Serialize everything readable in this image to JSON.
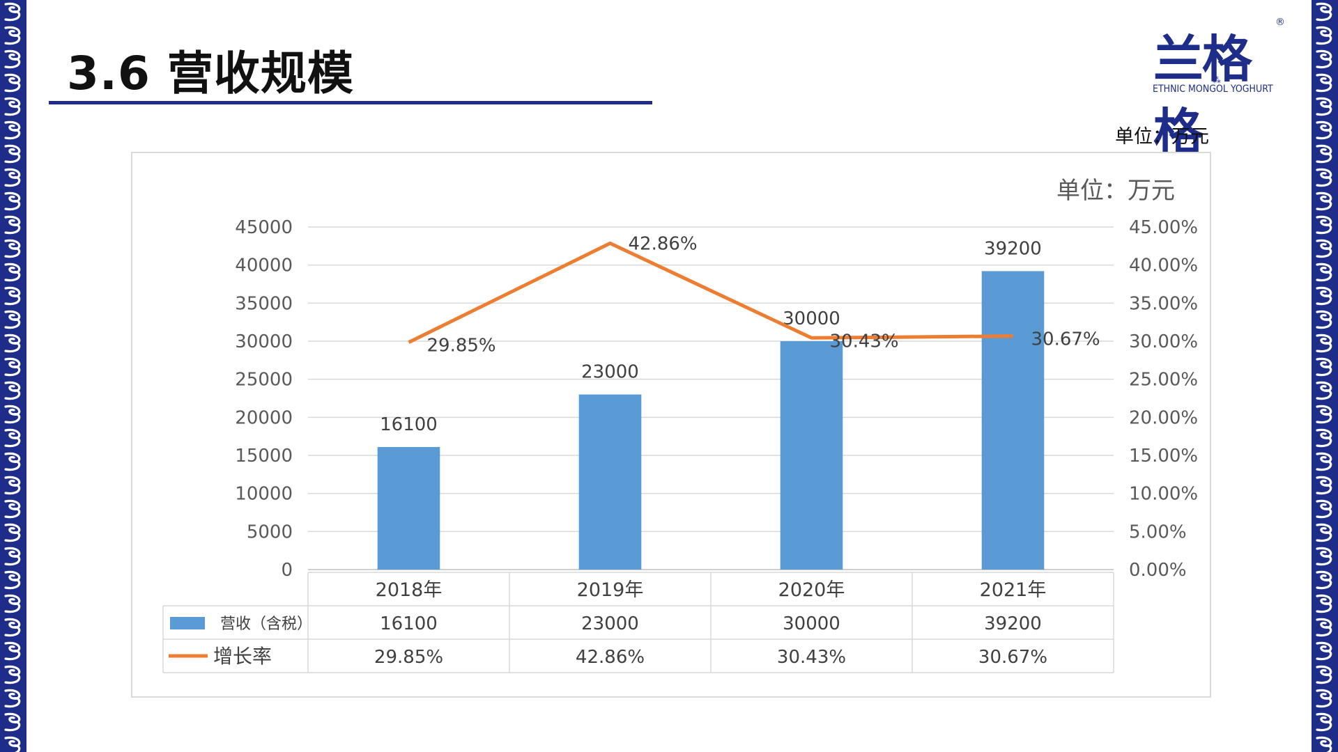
{
  "slide": {
    "title": "3.6 营收规模",
    "unit_label": "单位：万元",
    "logo": {
      "mark": "兰格格",
      "registered": "®",
      "ornament": "⁂",
      "subtitle": "ETHNIC MONGOL YOGHURT"
    }
  },
  "colors": {
    "accent": "#1f2d8a",
    "bar": "#5b9bd5",
    "line": "#ed7d31",
    "border_bg": "#1f2d8a",
    "border_motif": "#ffffff"
  },
  "chart_data": {
    "type": "bar",
    "unit_note": "单位：万元",
    "categories": [
      "2018年",
      "2019年",
      "2020年",
      "2021年"
    ],
    "series": [
      {
        "name": "营收（含税）",
        "type": "bar",
        "axis": "left",
        "values": [
          16100,
          23000,
          30000,
          39200
        ],
        "labels": [
          "16100",
          "23000",
          "30000",
          "39200"
        ]
      },
      {
        "name": "增长率",
        "type": "line",
        "axis": "right",
        "values": [
          29.85,
          42.86,
          30.43,
          30.67
        ],
        "labels": [
          "29.85%",
          "42.86%",
          "30.43%",
          "30.67%"
        ]
      }
    ],
    "left_axis": {
      "ylim": [
        0,
        45000
      ],
      "ticks": [
        "0",
        "5000",
        "10000",
        "15000",
        "20000",
        "25000",
        "30000",
        "35000",
        "40000",
        "45000"
      ]
    },
    "right_axis": {
      "ylim": [
        0,
        45
      ],
      "ticks": [
        "0.00%",
        "5.00%",
        "10.00%",
        "15.00%",
        "20.00%",
        "25.00%",
        "30.00%",
        "35.00%",
        "40.00%",
        "45.00%"
      ]
    },
    "grid": true,
    "data_table": true
  }
}
